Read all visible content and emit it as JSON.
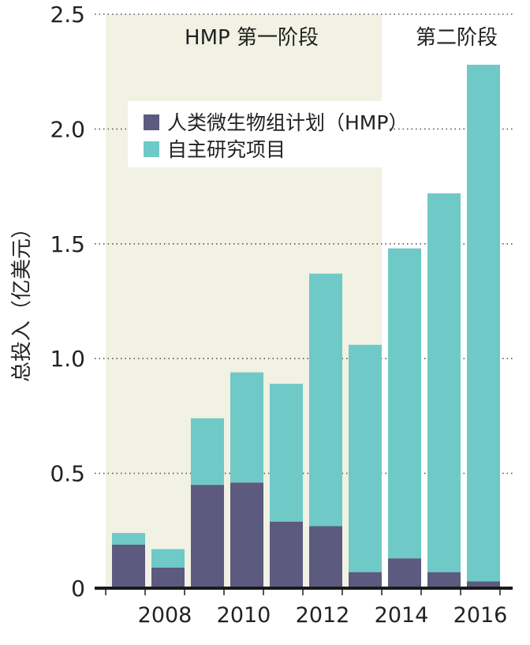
{
  "chart_data": {
    "type": "bar",
    "stacked": true,
    "title": "",
    "ylabel": "总投入（亿美元）",
    "xlabel": "",
    "ylim": [
      0,
      2.5
    ],
    "yticks": [
      0,
      0.5,
      1.0,
      1.5,
      2.0,
      2.5
    ],
    "ytick_labels": [
      "0",
      "0.5",
      "1.0",
      "1.5",
      "2.0",
      "2.5"
    ],
    "grid": "horizontal-dotted",
    "legend_position": "top-left",
    "categories": [
      "2007",
      "2008",
      "2009",
      "2010",
      "2011",
      "2012",
      "2013",
      "2014",
      "2015",
      "2016"
    ],
    "xtick_labels": [
      "",
      "2008",
      "",
      "2010",
      "",
      "2012",
      "",
      "2014",
      "",
      "2016"
    ],
    "series": [
      {
        "name": "人类微生物组计划（HMP）",
        "color": "#5c5a7e",
        "values": [
          0.19,
          0.09,
          0.45,
          0.46,
          0.29,
          0.27,
          0.07,
          0.13,
          0.07,
          0.03
        ]
      },
      {
        "name": "自主研究项目",
        "color": "#6fc9c6",
        "values": [
          0.05,
          0.08,
          0.29,
          0.48,
          0.6,
          1.1,
          0.99,
          1.35,
          1.65,
          2.25
        ]
      }
    ],
    "phases": [
      {
        "label": "HMP 第一阶段",
        "start": "2007",
        "end": "2013",
        "shaded": true,
        "color": "#f1f1e4"
      },
      {
        "label": "第二阶段",
        "start": "2014",
        "end": "2016",
        "shaded": false
      }
    ]
  }
}
